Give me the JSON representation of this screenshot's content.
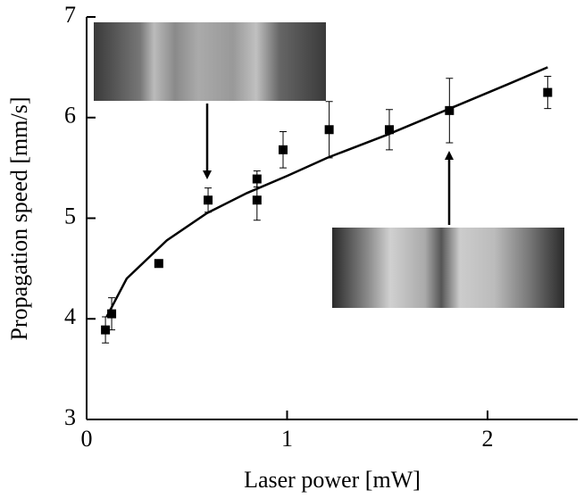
{
  "chart_data": {
    "type": "scatter",
    "xlabel": "Laser power [mW]",
    "ylabel": "Propagation speed [mm/s]",
    "x": [
      0.094,
      0.125,
      0.36,
      0.606,
      0.85,
      0.85,
      0.98,
      1.21,
      1.51,
      1.81,
      2.3
    ],
    "series": [
      {
        "color": "#000000",
        "values": [
          3.89,
          4.05,
          4.55,
          5.18,
          5.39,
          5.18,
          5.68,
          5.88,
          5.88,
          6.07,
          6.25
        ],
        "errors": [
          0.13,
          0.16,
          0,
          0.12,
          0.08,
          0.2,
          0.18,
          0.28,
          0.2,
          0.32,
          0.16
        ]
      }
    ],
    "fit": {
      "color": "#000000",
      "x": [
        0.1,
        0.2,
        0.4,
        0.6,
        0.8,
        1.0,
        1.2,
        1.5,
        1.8,
        2.1,
        2.3
      ],
      "values": [
        4.02,
        4.4,
        4.78,
        5.05,
        5.25,
        5.42,
        5.6,
        5.83,
        6.08,
        6.33,
        6.5
      ]
    },
    "xlim": [
      0,
      2.45
    ],
    "xticks": [
      0,
      1,
      2
    ],
    "ylim": [
      3,
      7
    ],
    "yticks": [
      3,
      4,
      5,
      6,
      7
    ]
  }
}
